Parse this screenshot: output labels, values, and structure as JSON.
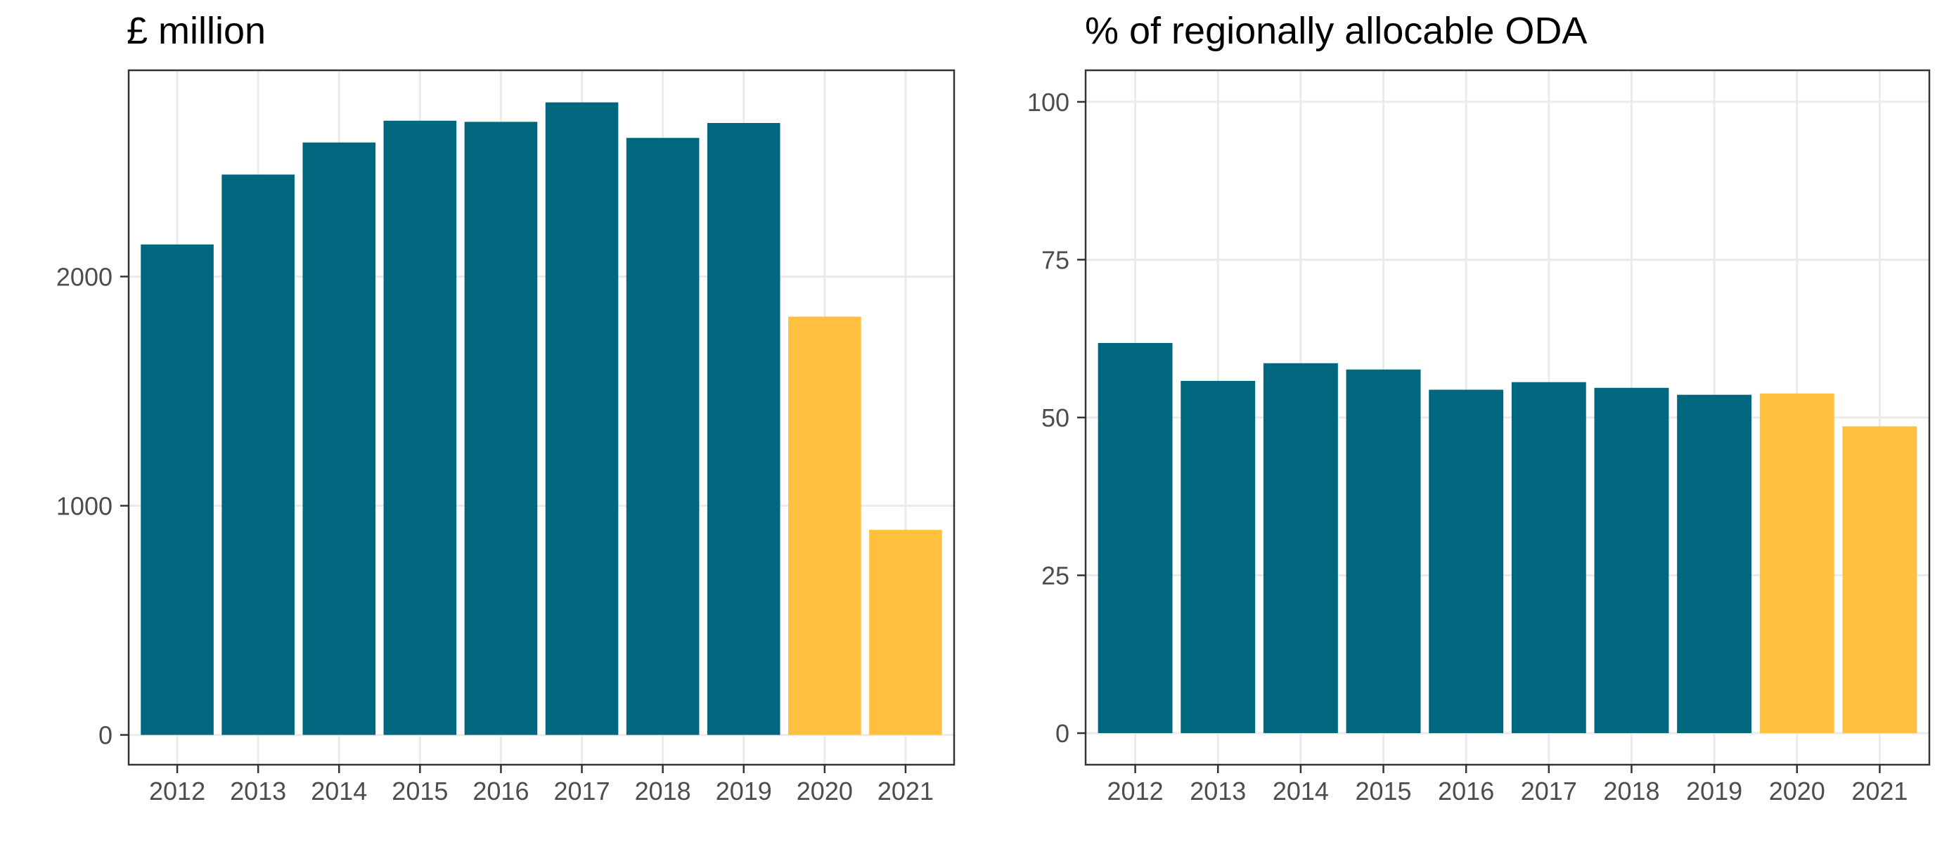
{
  "colors": {
    "primary": "#00677f",
    "highlight": "#ffbf3f",
    "grid": "#ebebeb",
    "border": "#333333",
    "tick_text": "#4d4d4d"
  },
  "chart_data": [
    {
      "type": "bar",
      "title": "£ million",
      "xlabel": "",
      "ylabel": "",
      "categories": [
        "2012",
        "2013",
        "2014",
        "2015",
        "2016",
        "2017",
        "2018",
        "2019",
        "2020",
        "2021"
      ],
      "values": [
        2140,
        2445,
        2585,
        2680,
        2675,
        2760,
        2605,
        2670,
        1825,
        895
      ],
      "highlighted_categories": [
        "2020",
        "2021"
      ],
      "yticks": [
        0,
        1000,
        2000
      ],
      "ylim": [
        -130,
        2900
      ],
      "grid": true
    },
    {
      "type": "bar",
      "title": "% of regionally allocable ODA",
      "xlabel": "",
      "ylabel": "",
      "categories": [
        "2012",
        "2013",
        "2014",
        "2015",
        "2016",
        "2017",
        "2018",
        "2019",
        "2020",
        "2021"
      ],
      "values": [
        61.8,
        55.8,
        58.6,
        57.6,
        54.4,
        55.6,
        54.7,
        53.6,
        53.8,
        48.6
      ],
      "highlighted_categories": [
        "2020",
        "2021"
      ],
      "yticks": [
        0,
        25,
        50,
        75,
        100
      ],
      "ylim": [
        -5,
        105
      ],
      "grid": true
    }
  ]
}
